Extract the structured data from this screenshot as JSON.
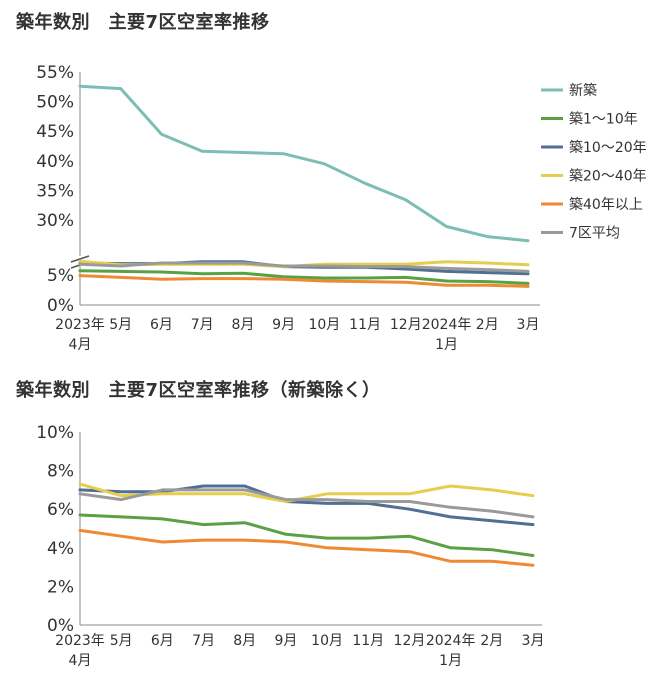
{
  "colors": {
    "新築": "#7dbdb4",
    "築1～10年": "#5aa146",
    "築10～20年": "#4f6f93",
    "築20～40年": "#e5cd4e",
    "築40年以上": "#ed8a33",
    "7区平均": "#9a9a9a"
  },
  "chart_data": [
    {
      "type": "line",
      "title": "築年数別　主要7区空室率推移",
      "xlabel": "",
      "ylabel": "",
      "x_labels": [
        "2023年\n4月",
        "5月",
        "6月",
        "7月",
        "8月",
        "9月",
        "10月",
        "11月",
        "12月",
        "2024年\n1月",
        "2月",
        "3月"
      ],
      "y_ticks": [
        "0%",
        "5%",
        "30%",
        "35%",
        "40%",
        "45%",
        "50%",
        "55%"
      ],
      "y_axis_break": true,
      "legend_position": "right",
      "series": [
        {
          "name": "新築",
          "values": [
            52.6,
            52.2,
            44.5,
            41.6,
            41.4,
            41.2,
            39.5,
            36.2,
            33.4,
            28.9,
            27.2,
            26.5
          ]
        },
        {
          "name": "築1～10年",
          "values": [
            5.7,
            5.6,
            5.5,
            5.2,
            5.3,
            4.7,
            4.5,
            4.5,
            4.6,
            4.0,
            3.9,
            3.6
          ]
        },
        {
          "name": "築10～20年",
          "values": [
            7.0,
            6.9,
            6.9,
            7.2,
            7.2,
            6.4,
            6.3,
            6.3,
            6.0,
            5.6,
            5.4,
            5.2
          ]
        },
        {
          "name": "築20～40年",
          "values": [
            7.3,
            6.7,
            6.8,
            6.8,
            6.8,
            6.4,
            6.8,
            6.8,
            6.8,
            7.2,
            7.0,
            6.7
          ]
        },
        {
          "name": "築40年以上",
          "values": [
            4.9,
            4.6,
            4.3,
            4.4,
            4.4,
            4.3,
            4.0,
            3.9,
            3.8,
            3.3,
            3.3,
            3.1
          ]
        },
        {
          "name": "7区平均",
          "values": [
            6.8,
            6.5,
            7.0,
            7.0,
            7.0,
            6.5,
            6.5,
            6.4,
            6.4,
            6.1,
            5.9,
            5.6
          ]
        }
      ]
    },
    {
      "type": "line",
      "title": "築年数別　主要7区空室率推移（新築除く）",
      "xlabel": "",
      "ylabel": "",
      "x_labels": [
        "2023年\n4月",
        "5月",
        "6月",
        "7月",
        "8月",
        "9月",
        "10月",
        "11月",
        "12月",
        "2024年\n1月",
        "2月",
        "3月"
      ],
      "y_ticks": [
        "0%",
        "2%",
        "4%",
        "6%",
        "8%",
        "10%"
      ],
      "ylim": [
        0,
        10
      ],
      "series": [
        {
          "name": "築1～10年",
          "values": [
            5.7,
            5.6,
            5.5,
            5.2,
            5.3,
            4.7,
            4.5,
            4.5,
            4.6,
            4.0,
            3.9,
            3.6
          ]
        },
        {
          "name": "築10～20年",
          "values": [
            7.0,
            6.9,
            6.9,
            7.2,
            7.2,
            6.4,
            6.3,
            6.3,
            6.0,
            5.6,
            5.4,
            5.2
          ]
        },
        {
          "name": "築20～40年",
          "values": [
            7.3,
            6.7,
            6.8,
            6.8,
            6.8,
            6.4,
            6.8,
            6.8,
            6.8,
            7.2,
            7.0,
            6.7
          ]
        },
        {
          "name": "築40年以上",
          "values": [
            4.9,
            4.6,
            4.3,
            4.4,
            4.4,
            4.3,
            4.0,
            3.9,
            3.8,
            3.3,
            3.3,
            3.1
          ]
        },
        {
          "name": "7区平均",
          "values": [
            6.8,
            6.5,
            7.0,
            7.0,
            7.0,
            6.5,
            6.5,
            6.4,
            6.4,
            6.1,
            5.9,
            5.6
          ]
        }
      ]
    }
  ]
}
